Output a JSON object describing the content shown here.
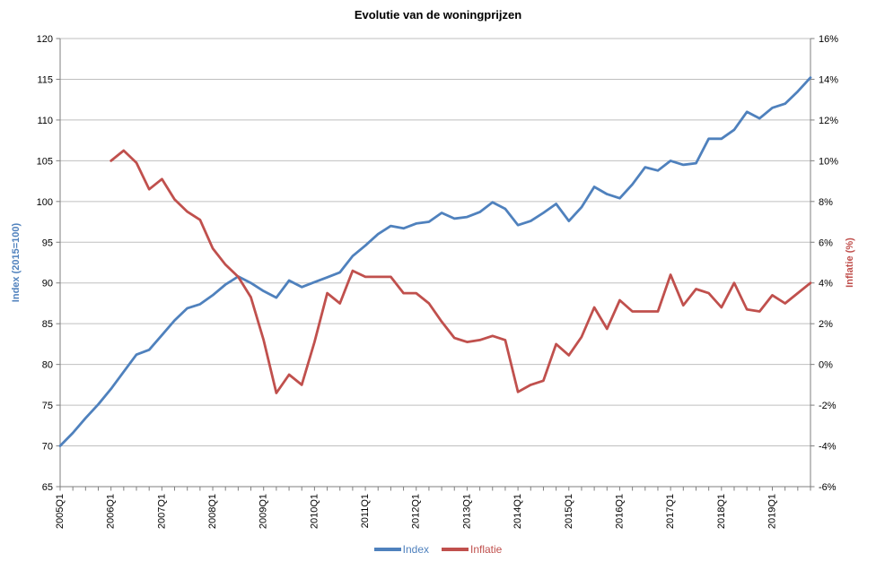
{
  "title": "Evolutie van de woningprijzen",
  "legend": [
    {
      "label": "Index",
      "color": "#4F81BD"
    },
    {
      "label": "Inflatie",
      "color": "#C0504D"
    }
  ],
  "colors": {
    "gridline": "#BFBFBF",
    "axis_line": "#7F7F7F",
    "background": "#FFFFFF",
    "index_series": "#4F81BD",
    "inflation_series": "#C0504D"
  },
  "chart_data": {
    "type": "line",
    "title": "Evolutie van de woningprijzen",
    "x_categories": [
      "2005Q1",
      "2005Q2",
      "2005Q3",
      "2005Q4",
      "2006Q1",
      "2006Q2",
      "2006Q3",
      "2006Q4",
      "2007Q1",
      "2007Q2",
      "2007Q3",
      "2007Q4",
      "2008Q1",
      "2008Q2",
      "2008Q3",
      "2008Q4",
      "2009Q1",
      "2009Q2",
      "2009Q3",
      "2009Q4",
      "2010Q1",
      "2010Q2",
      "2010Q3",
      "2010Q4",
      "2011Q1",
      "2011Q2",
      "2011Q3",
      "2011Q4",
      "2012Q1",
      "2012Q2",
      "2012Q3",
      "2012Q4",
      "2013Q1",
      "2013Q2",
      "2013Q3",
      "2013Q4",
      "2014Q1",
      "2014Q2",
      "2014Q3",
      "2014Q4",
      "2015Q1",
      "2015Q2",
      "2015Q3",
      "2015Q4",
      "2016Q1",
      "2016Q2",
      "2016Q3",
      "2016Q4",
      "2017Q1",
      "2017Q2",
      "2017Q3",
      "2017Q4",
      "2018Q1",
      "2018Q2",
      "2018Q3",
      "2018Q4",
      "2019Q1",
      "2019Q2",
      "2019Q3",
      "2019Q4"
    ],
    "x_tick_labels_shown": [
      "2005Q1",
      "2006Q1",
      "2007Q1",
      "2008Q1",
      "2009Q1",
      "2010Q1",
      "2011Q1",
      "2012Q1",
      "2013Q1",
      "2014Q1",
      "2015Q1",
      "2016Q1",
      "2017Q1",
      "2018Q1",
      "2019Q1"
    ],
    "series": [
      {
        "name": "Index",
        "axis": "left",
        "color": "#4F81BD",
        "values": [
          70.0,
          71.6,
          73.4,
          75.1,
          77.0,
          79.1,
          81.2,
          81.8,
          83.6,
          85.4,
          86.9,
          87.4,
          88.5,
          89.8,
          90.8,
          90.0,
          89.0,
          88.2,
          90.3,
          89.5,
          90.1,
          90.7,
          91.3,
          93.3,
          94.6,
          96.0,
          97.0,
          96.7,
          97.3,
          97.5,
          98.6,
          97.9,
          98.1,
          98.7,
          99.9,
          99.1,
          97.1,
          97.6,
          98.6,
          99.7,
          97.6,
          99.3,
          101.8,
          100.9,
          100.4,
          102.1,
          104.2,
          103.8,
          105.0,
          104.5,
          104.7,
          107.7,
          107.7,
          108.8,
          111.0,
          110.2,
          111.5,
          112.0,
          113.5,
          115.2
        ]
      },
      {
        "name": "Inflatie",
        "axis": "right",
        "color": "#C0504D",
        "values": [
          null,
          null,
          null,
          null,
          10.0,
          10.5,
          9.9,
          8.6,
          9.1,
          8.1,
          7.5,
          7.1,
          5.7,
          4.9,
          4.3,
          3.3,
          1.2,
          -1.4,
          -0.5,
          -1.0,
          1.1,
          3.5,
          3.0,
          4.6,
          4.3,
          4.3,
          4.3,
          3.5,
          3.5,
          3.0,
          2.1,
          1.3,
          1.1,
          1.2,
          1.4,
          1.2,
          -1.35,
          -1.0,
          -0.8,
          1.0,
          0.45,
          1.35,
          2.8,
          1.75,
          3.15,
          2.6,
          2.6,
          2.6,
          4.4,
          2.9,
          3.7,
          3.5,
          2.8,
          4.0,
          2.7,
          2.6,
          3.4,
          3.0,
          3.5,
          4.0
        ]
      }
    ],
    "left_axis": {
      "title": "Index  (2015=100)",
      "min": 65,
      "max": 120,
      "step": 5,
      "color": "#4F81BD"
    },
    "right_axis": {
      "title": "Inflatie  (%)",
      "min": -6,
      "max": 16,
      "step": 2,
      "suffix": "%",
      "color": "#C0504D"
    },
    "grid": "horizontal",
    "legend_position": "bottom"
  }
}
